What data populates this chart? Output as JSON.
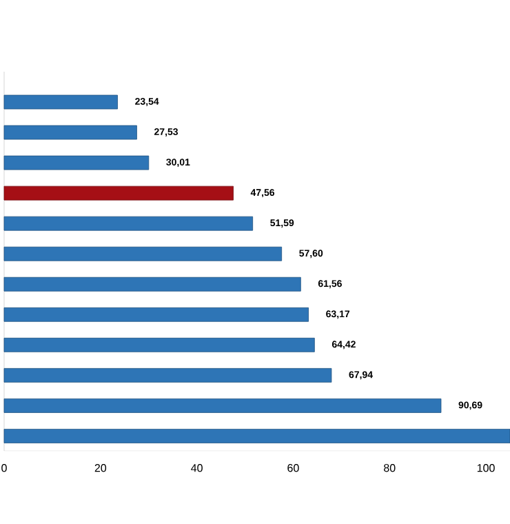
{
  "chart_data": {
    "type": "bar",
    "orientation": "horizontal",
    "categories": [
      null,
      null,
      null,
      null,
      null,
      null,
      null,
      null,
      null,
      null,
      null,
      null
    ],
    "values": [
      23.54,
      27.53,
      30.01,
      47.56,
      51.59,
      57.6,
      61.56,
      63.17,
      64.42,
      67.94,
      90.69,
      105
    ],
    "colors": [
      "#2e75b6",
      "#2e75b6",
      "#2e75b6",
      "#a50f15",
      "#2e75b6",
      "#2e75b6",
      "#2e75b6",
      "#2e75b6",
      "#2e75b6",
      "#2e75b6",
      "#2e75b6",
      "#2e75b6"
    ],
    "value_labels": [
      "23,54",
      "27,53",
      "30,01",
      "47,56",
      "51,59",
      "57,60",
      "61,56",
      "63,17",
      "64,42",
      "67,94",
      "90,69",
      null
    ],
    "xlim": [
      0,
      105
    ],
    "xticks": [
      0,
      20,
      40,
      60,
      80,
      100
    ]
  }
}
